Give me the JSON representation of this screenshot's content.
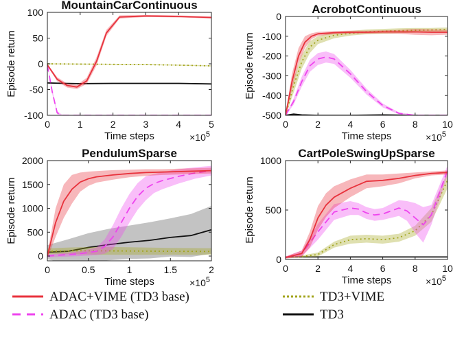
{
  "legend": [
    {
      "name": "ADAC+VIME (TD3 base)",
      "color": "#e8323c",
      "dash": "solid"
    },
    {
      "name": "ADAC (TD3 base)",
      "color": "#ee44ee",
      "dash": "dashed"
    },
    {
      "name": "TD3+VIME",
      "color": "#a3a51e",
      "dash": "dotted"
    },
    {
      "name": "TD3",
      "color": "#111111",
      "dash": "solid"
    }
  ],
  "chart_data": [
    {
      "type": "line",
      "title": "MountainCarContinuous",
      "xlabel": "Time steps",
      "ylabel": "Episode return",
      "x_exponent": "×10",
      "x_exponent_power": "5",
      "xlim": [
        0,
        5
      ],
      "ylim": [
        -100,
        100
      ],
      "xticks": [
        0,
        1,
        2,
        3,
        4,
        5
      ],
      "yticks": [
        -100,
        -50,
        0,
        50,
        100
      ],
      "grid": false,
      "series": [
        {
          "name": "ADAC+VIME (TD3 base)",
          "x": [
            0,
            0.3,
            0.6,
            0.9,
            1.2,
            1.5,
            1.8,
            2.2,
            3,
            4,
            5
          ],
          "y": [
            -2,
            -30,
            -42,
            -45,
            -33,
            5,
            60,
            91,
            93,
            92,
            90
          ],
          "band": [
            2,
            4,
            4,
            4,
            6,
            8,
            6,
            3,
            2,
            2,
            2
          ]
        },
        {
          "name": "ADAC (TD3 base)",
          "x": [
            0,
            0.15,
            0.3,
            0.45,
            1,
            2,
            3,
            4,
            5
          ],
          "y": [
            -2,
            -55,
            -95,
            -100,
            -100,
            -100,
            -100,
            -100,
            -100
          ],
          "band": [
            2,
            4,
            3,
            1,
            1,
            1,
            1,
            1,
            1
          ]
        },
        {
          "name": "TD3+VIME",
          "x": [
            0,
            1,
            2,
            3,
            4,
            5
          ],
          "y": [
            0,
            -0.5,
            -1,
            -1.5,
            -2.5,
            -4
          ],
          "band": [
            1,
            1,
            1,
            1,
            1,
            1
          ]
        },
        {
          "name": "TD3",
          "x": [
            0,
            0.5,
            1,
            2,
            3,
            4,
            5
          ],
          "y": [
            -37,
            -38,
            -38.5,
            -38,
            -38,
            -38,
            -39
          ],
          "band": [
            1,
            1,
            1,
            1,
            1,
            1,
            1
          ]
        }
      ]
    },
    {
      "type": "line",
      "title": "AcrobotContinuous",
      "xlabel": "Time steps",
      "ylabel": "Episode return",
      "x_exponent": "×10",
      "x_exponent_power": "5",
      "xlim": [
        0,
        10
      ],
      "ylim": [
        -500,
        0
      ],
      "xticks": [
        0,
        2,
        4,
        6,
        8,
        10
      ],
      "yticks": [
        -500,
        -400,
        -300,
        -200,
        -100,
        0
      ],
      "grid": false,
      "series": [
        {
          "name": "ADAC+VIME (TD3 base)",
          "x": [
            0,
            0.4,
            0.8,
            1.2,
            1.6,
            2,
            3,
            4,
            5,
            6,
            7,
            8,
            9,
            10
          ],
          "y": [
            -500,
            -330,
            -200,
            -130,
            -100,
            -88,
            -82,
            -80,
            -80,
            -78,
            -78,
            -78,
            -80,
            -80
          ],
          "band": [
            5,
            40,
            40,
            30,
            15,
            10,
            8,
            8,
            8,
            8,
            10,
            15,
            15,
            12
          ]
        },
        {
          "name": "ADAC (TD3 base)",
          "x": [
            0,
            0.5,
            1,
            1.5,
            2,
            2.5,
            3,
            4,
            5,
            6,
            7,
            8,
            9,
            10
          ],
          "y": [
            -500,
            -430,
            -330,
            -250,
            -215,
            -205,
            -215,
            -290,
            -380,
            -450,
            -490,
            -500,
            -500,
            -500
          ],
          "band": [
            2,
            15,
            25,
            30,
            30,
            28,
            25,
            20,
            15,
            10,
            5,
            2,
            2,
            2
          ]
        },
        {
          "name": "TD3+VIME",
          "x": [
            0,
            0.5,
            1,
            1.5,
            2,
            3,
            4,
            5,
            6,
            7,
            8,
            9,
            10
          ],
          "y": [
            -500,
            -350,
            -230,
            -155,
            -120,
            -95,
            -85,
            -78,
            -75,
            -72,
            -70,
            -68,
            -66
          ],
          "band": [
            5,
            35,
            35,
            30,
            20,
            15,
            12,
            12,
            12,
            12,
            12,
            10,
            10
          ]
        },
        {
          "name": "TD3",
          "x": [
            0,
            0.5,
            1,
            2,
            4,
            6,
            8,
            10
          ],
          "y": [
            -500,
            -494,
            -498,
            -500,
            -500,
            -498,
            -500,
            -500
          ],
          "band": [
            2,
            4,
            2,
            2,
            2,
            3,
            2,
            2
          ]
        }
      ]
    },
    {
      "type": "line",
      "title": "PendulumSparse",
      "xlabel": "Time steps",
      "ylabel": "Episode return",
      "x_exponent": "×10",
      "x_exponent_power": "5",
      "xlim": [
        0,
        2
      ],
      "ylim": [
        -100,
        2000
      ],
      "xticks": [
        0,
        0.5,
        1,
        1.5,
        2
      ],
      "yticks": [
        0,
        500,
        1000,
        1500,
        2000
      ],
      "grid": false,
      "series": [
        {
          "name": "ADAC+VIME (TD3 base)",
          "x": [
            0,
            0.1,
            0.2,
            0.3,
            0.4,
            0.5,
            0.6,
            0.8,
            1,
            1.2,
            1.4,
            1.6,
            1.8,
            2
          ],
          "y": [
            0,
            700,
            1150,
            1400,
            1550,
            1620,
            1660,
            1700,
            1730,
            1750,
            1760,
            1770,
            1780,
            1790
          ],
          "band": [
            50,
            300,
            350,
            300,
            200,
            150,
            120,
            100,
            80,
            70,
            60,
            60,
            60,
            60
          ]
        },
        {
          "name": "ADAC (TD3 base)",
          "x": [
            0,
            0.4,
            0.6,
            0.7,
            0.8,
            0.9,
            1,
            1.1,
            1.2,
            1.3,
            1.4,
            1.6,
            1.8,
            2
          ],
          "y": [
            0,
            50,
            100,
            200,
            400,
            700,
            1000,
            1250,
            1420,
            1520,
            1580,
            1670,
            1740,
            1790
          ],
          "band": [
            30,
            50,
            80,
            150,
            250,
            300,
            300,
            280,
            250,
            200,
            180,
            150,
            120,
            100
          ]
        },
        {
          "name": "TD3+VIME",
          "x": [
            0,
            0.3,
            0.6,
            1,
            1.5,
            2
          ],
          "y": [
            100,
            110,
            110,
            105,
            100,
            95
          ],
          "band": [
            60,
            70,
            80,
            80,
            70,
            70
          ]
        },
        {
          "name": "TD3",
          "x": [
            0,
            0.25,
            0.5,
            0.75,
            1,
            1.25,
            1.5,
            1.75,
            2
          ],
          "y": [
            80,
            100,
            180,
            240,
            290,
            330,
            390,
            430,
            550
          ],
          "band": [
            150,
            250,
            300,
            330,
            350,
            380,
            400,
            450,
            500
          ]
        }
      ]
    },
    {
      "type": "line",
      "title": "CartPoleSwingUpSparse",
      "xlabel": "Time steps",
      "ylabel": "Episode return",
      "x_exponent": "×10",
      "x_exponent_power": "5",
      "xlim": [
        0,
        10
      ],
      "ylim": [
        0,
        1000
      ],
      "xticks": [
        0,
        2,
        4,
        6,
        8,
        10
      ],
      "yticks": [
        0,
        500,
        1000
      ],
      "grid": false,
      "series": [
        {
          "name": "ADAC+VIME (TD3 base)",
          "x": [
            0,
            1,
            1.5,
            2,
            2.5,
            3,
            4,
            5,
            6,
            7,
            8,
            9,
            10
          ],
          "y": [
            20,
            60,
            200,
            420,
            550,
            630,
            720,
            790,
            800,
            820,
            850,
            870,
            880
          ],
          "band": [
            10,
            30,
            80,
            120,
            120,
            110,
            90,
            70,
            60,
            50,
            30,
            20,
            20
          ]
        },
        {
          "name": "ADAC (TD3 base)",
          "x": [
            0,
            1,
            2,
            3,
            4,
            4.5,
            5,
            5.5,
            6,
            7,
            7.5,
            8,
            8.5,
            9,
            10
          ],
          "y": [
            20,
            60,
            280,
            480,
            520,
            510,
            470,
            450,
            460,
            520,
            490,
            420,
            350,
            450,
            900
          ],
          "band": [
            10,
            30,
            80,
            80,
            70,
            60,
            60,
            60,
            60,
            80,
            100,
            150,
            180,
            100,
            50
          ]
        },
        {
          "name": "TD3+VIME",
          "x": [
            0,
            1,
            2,
            3,
            4,
            5,
            6,
            7,
            8,
            9,
            10
          ],
          "y": [
            20,
            30,
            50,
            150,
            200,
            210,
            200,
            220,
            290,
            450,
            800
          ],
          "band": [
            10,
            10,
            20,
            30,
            40,
            40,
            40,
            40,
            50,
            70,
            80
          ]
        },
        {
          "name": "TD3",
          "x": [
            0,
            2,
            4,
            6,
            8,
            10
          ],
          "y": [
            25,
            25,
            25,
            25,
            25,
            25
          ],
          "band": [
            3,
            3,
            3,
            3,
            3,
            3
          ]
        }
      ]
    }
  ]
}
